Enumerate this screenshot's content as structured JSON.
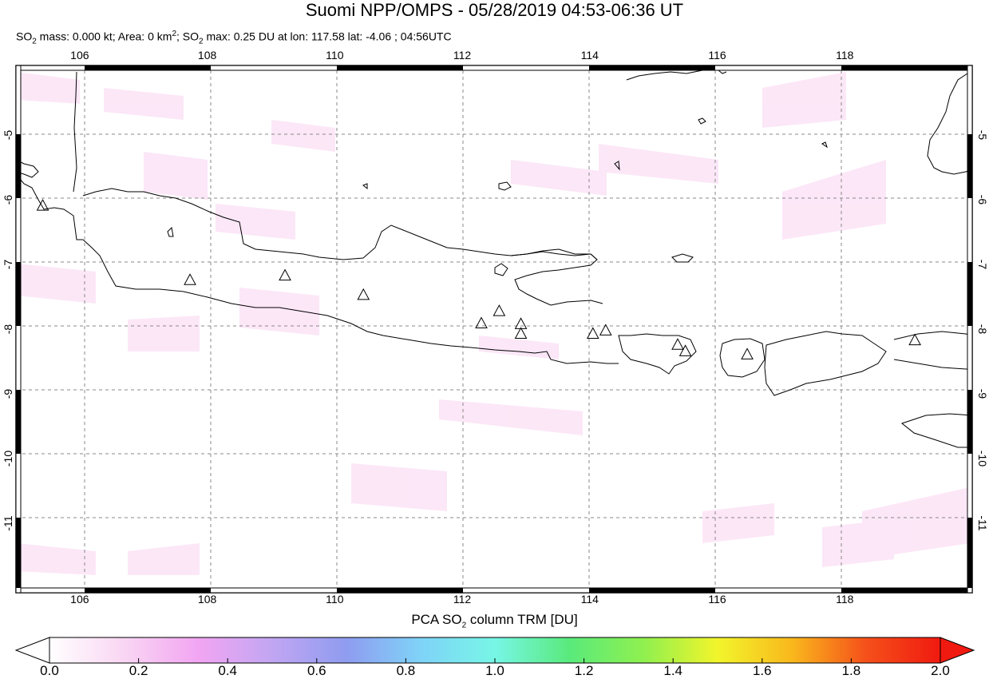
{
  "title": "Suomi NPP/OMPS - 05/28/2019 04:53-06:36 UT",
  "subtitle": {
    "so2_label": "SO",
    "so2_sub": "2",
    "mass_text": " mass: 0.000 kt; Area: 0 km",
    "area_sup": "2",
    "max_sep": "; SO",
    "max_sub": "2",
    "max_text": " max: 0.25 DU at lon: 117.58 lat: -4.06 ; 04:56UTC"
  },
  "map": {
    "lon_ticks": [
      "106",
      "108",
      "110",
      "112",
      "114",
      "116",
      "118"
    ],
    "lat_ticks": [
      "-5",
      "-6",
      "-7",
      "-8",
      "-9",
      "-10",
      "-11"
    ],
    "lon_range": [
      105,
      120
    ],
    "lat_range": [
      -12,
      -4
    ]
  },
  "colorbar": {
    "title_pre": "PCA SO",
    "title_sub": "2",
    "title_post": " column TRM [DU]",
    "ticks": [
      "0.0",
      "0.2",
      "0.4",
      "0.6",
      "0.8",
      "1.0",
      "1.2",
      "1.4",
      "1.6",
      "1.8",
      "2.0"
    ],
    "range": [
      0,
      2
    ],
    "colors": [
      "#ffffff",
      "#f9d6f3",
      "#f2a5f2",
      "#c1a6f2",
      "#8f9cf0",
      "#7fd3f8",
      "#77f6e6",
      "#59ea7c",
      "#8ff04f",
      "#f2f52b",
      "#f9b81c",
      "#f5501a",
      "#f01a10"
    ]
  },
  "volcanoes": [
    {
      "lon": 105.42,
      "lat": -6.1
    },
    {
      "lon": 107.73,
      "lat": -7.25
    },
    {
      "lon": 109.22,
      "lat": -7.18
    },
    {
      "lon": 110.45,
      "lat": -7.48
    },
    {
      "lon": 112.3,
      "lat": -7.92
    },
    {
      "lon": 112.58,
      "lat": -7.73
    },
    {
      "lon": 112.92,
      "lat": -7.93
    },
    {
      "lon": 112.92,
      "lat": -8.08
    },
    {
      "lon": 114.05,
      "lat": -8.08
    },
    {
      "lon": 114.25,
      "lat": -8.03
    },
    {
      "lon": 115.38,
      "lat": -8.25
    },
    {
      "lon": 115.5,
      "lat": -8.35
    },
    {
      "lon": 116.47,
      "lat": -8.4
    },
    {
      "lon": 119.1,
      "lat": -8.18
    }
  ]
}
